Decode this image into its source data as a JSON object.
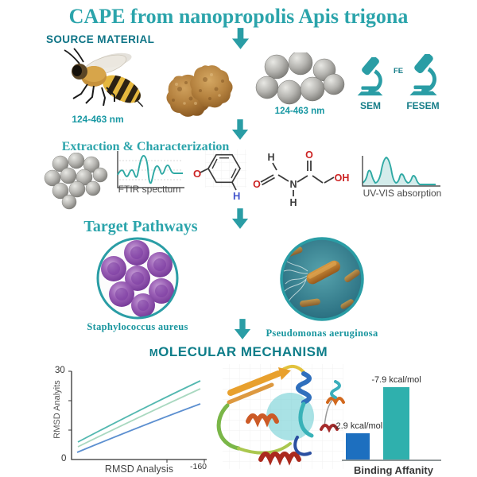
{
  "title": "CAPE from nanopropolis Apis trigona",
  "colors": {
    "accent_teal": "#2ba4ab",
    "dark_teal_heading": "#0e7486",
    "species_label_teal": "#18959e",
    "bar_blue": "#1d6fbf",
    "bar_teal": "#2fb0ad"
  },
  "icons": [
    "down-arrow-icon",
    "bee-illustration",
    "propolis-chunks",
    "nanoparticle-cluster",
    "sem-microscope-icon",
    "fesem-microscope-icon",
    "ftir-spectrum-icon",
    "phenol-structure-icon",
    "amide-structure-icon",
    "uvvis-spectrum-icon",
    "staphylococcus-photo",
    "pseudomonas-photo",
    "protein-ribbon-diagram"
  ],
  "source": {
    "heading": "SOURCE MATERIAL",
    "bee_size_label": "124-463 nm",
    "nanoparticle_size_label": "124-463 nm",
    "sem_label": "SEM",
    "fesem_label": "FESEM",
    "fe_label": "FE"
  },
  "extraction": {
    "heading": "Extraction & Characterization",
    "ftir_caption": "FTIR specttum",
    "uvvis_caption": "UV-VIS absorption",
    "phenol": {
      "o": "O",
      "h": "H"
    },
    "amide": {
      "h_top": "H",
      "o_left": "O",
      "n": "N",
      "h_bottom": "H",
      "o_top": "O",
      "oh": "OH"
    }
  },
  "pathways": {
    "heading": "Target Pathways",
    "left_label": "Staphylococcus aureus",
    "right_label": "Pseudomonas aeruginosa"
  },
  "mechanism": {
    "heading": "MOLECULAR MECHANISM"
  },
  "chart_data": [
    {
      "id": "rmsd",
      "type": "line",
      "title": "",
      "xlabel": "RMSD Analysis",
      "ylabel": "RMSD Analyits",
      "x_end_tick": "-160",
      "ylim": [
        0,
        30
      ],
      "yticks": [
        "0",
        "30"
      ],
      "grid": false,
      "legend": "none",
      "x": [
        0,
        25,
        50,
        75,
        100
      ],
      "series": [
        {
          "name": "upper-teal-line",
          "color": "#53b8b0",
          "values": [
            6.5,
            12.0,
            17.5,
            22.5,
            27.5
          ]
        },
        {
          "name": "middle-pale-green-line",
          "color": "#a9d8c0",
          "values": [
            5.0,
            10.0,
            15.5,
            20.5,
            24.5
          ]
        },
        {
          "name": "lower-blue-line",
          "color": "#5c8fd0",
          "values": [
            3.0,
            7.5,
            12.0,
            16.0,
            19.5
          ]
        }
      ]
    },
    {
      "id": "binding-affinity",
      "type": "bar",
      "title": "",
      "xlabel": "Binding Affanity",
      "categories": [
        "",
        ""
      ],
      "values": [
        -2.9,
        -7.9
      ],
      "bar_labels": [
        "-2.9 kcal/mol",
        "-7.9 kcal/mol"
      ],
      "colors": [
        "#1d6fbf",
        "#2fb0ad"
      ]
    },
    {
      "id": "ftir-icon",
      "type": "line",
      "title": "FTIR specttum",
      "note": "qualitative spectrum pictogram",
      "x": [
        0,
        1,
        2,
        3,
        4,
        5,
        6,
        7,
        8,
        9,
        10
      ],
      "values": [
        0.45,
        0.6,
        0.4,
        0.55,
        0.95,
        0.15,
        0.65,
        0.45,
        0.7,
        0.5,
        0.5
      ]
    },
    {
      "id": "uvvis-icon",
      "type": "area",
      "title": "UV-VIS absorption",
      "note": "qualitative spectrum pictogram",
      "x": [
        0,
        1,
        2,
        3,
        4,
        5,
        6,
        7,
        8
      ],
      "values": [
        0.15,
        0.45,
        0.1,
        1.0,
        0.1,
        0.35,
        0.1,
        0.3,
        0.05
      ]
    }
  ]
}
